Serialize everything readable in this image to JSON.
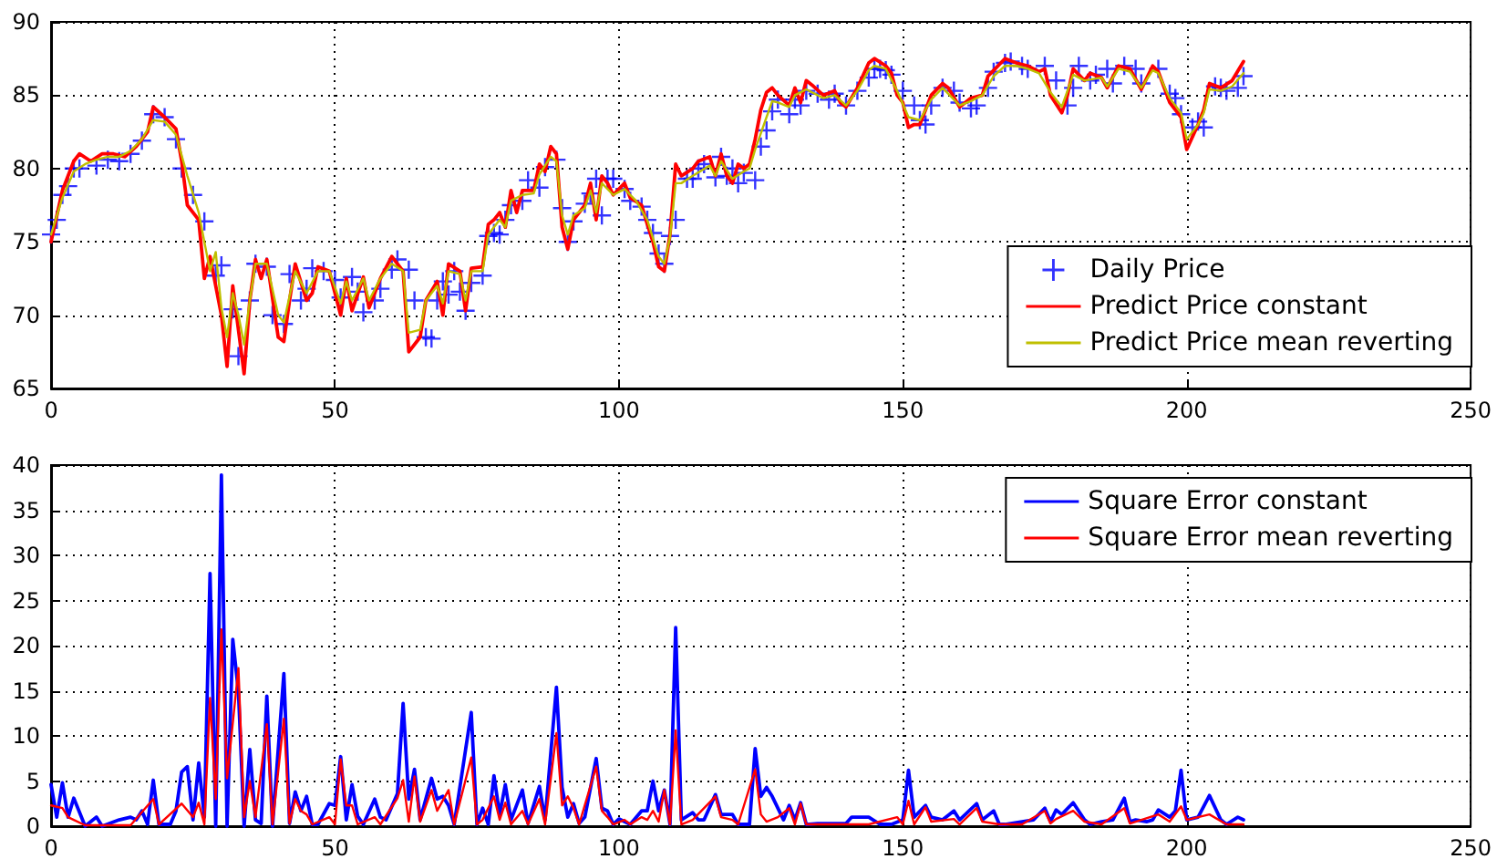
{
  "chart_data": [
    {
      "type": "line",
      "xlim": [
        0,
        250
      ],
      "xticks": [
        0,
        50,
        100,
        150,
        200,
        250
      ],
      "ylim": [
        65,
        90
      ],
      "yticks": [
        65,
        70,
        75,
        80,
        85,
        90
      ],
      "grid": true,
      "legend": "bottom right",
      "series": [
        {
          "name": "Daily Price",
          "type": "scatter",
          "marker": "cross",
          "color": "#0000ff",
          "x": [
            0,
            1,
            2,
            3,
            4,
            5,
            8,
            10,
            12,
            14,
            16,
            18,
            20,
            22,
            23,
            25,
            27,
            29,
            30,
            32,
            33,
            35,
            36,
            38,
            39,
            41,
            42,
            44,
            45,
            46,
            48,
            50,
            51,
            53,
            54,
            55,
            57,
            58,
            60,
            61,
            63,
            64,
            66,
            67,
            68,
            69,
            70,
            71,
            72,
            73,
            74,
            76,
            77,
            78,
            79,
            80,
            81,
            83,
            84,
            86,
            87,
            89,
            90,
            91,
            92,
            94,
            95,
            96,
            97,
            98,
            99,
            101,
            102,
            104,
            105,
            106,
            107,
            108,
            109,
            110,
            112,
            113,
            114,
            115,
            117,
            118,
            119,
            120,
            121,
            122,
            124,
            125,
            126,
            127,
            128,
            130,
            131,
            132,
            133,
            135,
            137,
            138,
            140,
            142,
            144,
            145,
            146,
            147,
            148,
            150,
            152,
            153,
            154,
            155,
            157,
            159,
            160,
            162,
            163,
            165,
            166,
            168,
            169,
            171,
            172,
            175,
            177,
            179,
            180,
            181,
            183,
            184,
            186,
            187,
            189,
            191,
            192,
            195,
            197,
            198,
            199,
            201,
            202,
            203,
            205,
            206,
            207,
            209,
            210
          ],
          "values": [
            75.5,
            76.5,
            78.2,
            78.8,
            80,
            80,
            80.2,
            80.6,
            80.5,
            81,
            81.9,
            83.7,
            83.5,
            82,
            80,
            78.2,
            76.4,
            72.7,
            73.4,
            70.4,
            67.2,
            71,
            73.5,
            73.3,
            70,
            69.4,
            72.8,
            71,
            71.8,
            73.2,
            73,
            72.4,
            71.2,
            72.6,
            71.6,
            70.2,
            71,
            71.8,
            73.1,
            73.8,
            73.1,
            71,
            68.5,
            68.4,
            71,
            72.3,
            71.4,
            73,
            71.6,
            70.3,
            72.2,
            72.7,
            75.4,
            75.6,
            75.5,
            76.5,
            77.5,
            77.8,
            79.2,
            78.7,
            80.1,
            80.6,
            77.3,
            75,
            76.4,
            77.6,
            78.3,
            79.3,
            76.8,
            79.3,
            79.3,
            78.6,
            77.8,
            77.4,
            76.5,
            75.6,
            74.2,
            73.5,
            75.4,
            76.5,
            79.3,
            79.3,
            80,
            80.3,
            79.4,
            80.8,
            79.5,
            80,
            79,
            79.7,
            79.2,
            81.5,
            82.6,
            83.9,
            84.7,
            83.7,
            84.7,
            84.3,
            85.3,
            85.1,
            84.7,
            85.1,
            84.3,
            85.3,
            86.2,
            86.8,
            86.8,
            86.7,
            86.4,
            85.3,
            84.3,
            83.3,
            83,
            84.3,
            85.5,
            85.3,
            84.5,
            84.1,
            84.3,
            85.5,
            86.6,
            87.2,
            87.3,
            87,
            86.8,
            87,
            86,
            84.3,
            85.5,
            87,
            86,
            86.4,
            86.8,
            85.8,
            87,
            86.8,
            85.8,
            86.8,
            85.1,
            84.8,
            83.7,
            82.8,
            83.2,
            82.8,
            85.6,
            85.5,
            85.3,
            85.5,
            86.3
          ]
        },
        {
          "name": "Predict Price constant",
          "type": "line",
          "color": "#ff0000",
          "x": [
            0,
            2,
            4,
            5,
            7,
            9,
            11,
            13,
            15,
            17,
            18,
            20,
            22,
            23,
            24,
            26,
            27,
            28,
            30,
            31,
            32,
            33,
            34,
            35,
            36,
            37,
            38,
            40,
            41,
            42,
            43,
            45,
            46,
            47,
            49,
            51,
            52,
            53,
            55,
            56,
            58,
            60,
            62,
            63,
            65,
            66,
            68,
            69,
            70,
            72,
            73,
            74,
            76,
            77,
            78,
            79,
            80,
            81,
            82,
            83,
            85,
            86,
            87,
            88,
            89,
            90,
            91,
            92,
            94,
            95,
            96,
            97,
            98,
            99,
            101,
            102,
            104,
            105,
            106,
            107,
            108,
            109,
            110,
            111,
            113,
            114,
            116,
            117,
            118,
            119,
            120,
            121,
            122,
            123,
            124,
            125,
            126,
            127,
            128,
            130,
            131,
            132,
            133,
            134,
            136,
            138,
            139,
            140,
            142,
            144,
            145,
            147,
            148,
            149,
            150,
            151,
            152,
            153,
            155,
            157,
            158,
            160,
            161,
            162,
            164,
            165,
            166,
            168,
            170,
            172,
            174,
            175,
            176,
            178,
            179,
            180,
            182,
            183,
            185,
            186,
            188,
            190,
            192,
            194,
            195,
            197,
            199,
            200,
            202,
            203,
            204,
            206,
            208,
            210
          ],
          "values": [
            75,
            78.5,
            80.5,
            81,
            80.5,
            81,
            81,
            80.8,
            81.5,
            82.5,
            84.2,
            83.5,
            82.7,
            80.5,
            77.5,
            76.5,
            72.5,
            74,
            70,
            66.5,
            72,
            69,
            66,
            71,
            73.8,
            72.5,
            73.8,
            68.5,
            68.2,
            71,
            73.5,
            71,
            71.5,
            73.3,
            73,
            70,
            72.5,
            70.3,
            72.6,
            70.5,
            72.5,
            74,
            73,
            67.5,
            68.5,
            71,
            72.3,
            70,
            73.5,
            73,
            70.3,
            73.2,
            73.3,
            76.2,
            76.5,
            77,
            76,
            78.5,
            77,
            78.5,
            78.5,
            80.3,
            79.8,
            81.5,
            81,
            76,
            74.5,
            76.5,
            77.5,
            79,
            76.5,
            79.5,
            79,
            78.2,
            79,
            78,
            77.5,
            76.2,
            75,
            73.3,
            73,
            75.5,
            80.3,
            79.5,
            80,
            80.5,
            80.8,
            79.5,
            81,
            79.5,
            79,
            80.3,
            80,
            80.3,
            82,
            84,
            85.2,
            85.5,
            85,
            84.3,
            85.5,
            84.5,
            86,
            85.7,
            85,
            85.3,
            84.5,
            84.2,
            85.5,
            87.2,
            87.5,
            87,
            86.5,
            85,
            84.5,
            82.8,
            83,
            83,
            85,
            85.8,
            85.5,
            84.2,
            84.5,
            84.8,
            85,
            86.3,
            86.7,
            87.5,
            87.2,
            87,
            86.6,
            86.8,
            85,
            83.8,
            85,
            86.8,
            86,
            86.5,
            86.2,
            85.5,
            87,
            86.8,
            85.4,
            87,
            86.6,
            84.5,
            83.5,
            81.3,
            83,
            84,
            85.8,
            85.5,
            86,
            87.3
          ]
        },
        {
          "name": "Predict Price mean reverting",
          "type": "line",
          "color": "#bfbf00",
          "x": [
            0,
            2,
            4,
            6,
            8,
            10,
            12,
            14,
            16,
            18,
            20,
            22,
            24,
            26,
            27,
            28,
            29,
            30,
            31,
            32,
            33,
            34,
            35,
            36,
            38,
            40,
            41,
            42,
            43,
            45,
            47,
            49,
            51,
            52,
            53,
            55,
            56,
            58,
            60,
            62,
            63,
            65,
            66,
            68,
            69,
            70,
            72,
            73,
            74,
            76,
            77,
            79,
            80,
            81,
            83,
            85,
            86,
            88,
            89,
            90,
            91,
            92,
            94,
            95,
            96,
            97,
            99,
            101,
            103,
            105,
            107,
            108,
            109,
            110,
            111,
            113,
            116,
            117,
            118,
            120,
            122,
            123,
            124,
            126,
            127,
            128,
            130,
            131,
            133,
            136,
            138,
            140,
            142,
            144,
            145,
            147,
            149,
            151,
            153,
            155,
            157,
            160,
            162,
            164,
            166,
            168,
            170,
            172,
            174,
            176,
            178,
            180,
            182,
            185,
            186,
            188,
            190,
            192,
            194,
            195,
            197,
            199,
            200,
            202,
            203,
            204,
            206,
            208,
            210
          ],
          "values": [
            75.5,
            78,
            79.8,
            80.3,
            80.6,
            80.8,
            80.8,
            81.2,
            82,
            83.3,
            83.2,
            82.3,
            79.5,
            77,
            75,
            73,
            74.3,
            70.5,
            68.5,
            71.5,
            70,
            68,
            71,
            73.5,
            73.5,
            70,
            69.5,
            71.3,
            73,
            71.5,
            73,
            73,
            70.8,
            72.3,
            71,
            72.5,
            71,
            72.5,
            73.5,
            73,
            68.8,
            69,
            71,
            72,
            70.8,
            73,
            72.8,
            71,
            73,
            73,
            75.5,
            76.5,
            76,
            77.8,
            78.2,
            78.3,
            79.6,
            80.8,
            80.5,
            76.8,
            75.5,
            76.8,
            77.3,
            78.5,
            77,
            79,
            78.2,
            78.6,
            77.8,
            76.5,
            74,
            73.5,
            75.3,
            79,
            79,
            79.5,
            80.2,
            79.5,
            80.5,
            79.3,
            79.8,
            80,
            81.3,
            83.5,
            84.6,
            84.5,
            84.2,
            85,
            85.4,
            84.8,
            85,
            84.3,
            85.3,
            86.7,
            87,
            86.8,
            85.3,
            83.5,
            83.3,
            84.7,
            85.5,
            84.3,
            84.6,
            85,
            86.3,
            87,
            87,
            86.8,
            86.5,
            85.2,
            84.2,
            86.4,
            86,
            86.2,
            85.6,
            86.8,
            86.6,
            85.5,
            86.7,
            86.5,
            84.8,
            83.8,
            82,
            83,
            83.8,
            85.4,
            85.3,
            85.6,
            86.5
          ]
        }
      ]
    },
    {
      "type": "line",
      "xlim": [
        0,
        250
      ],
      "xticks": [
        0,
        50,
        100,
        150,
        200,
        250
      ],
      "ylim": [
        0,
        40
      ],
      "yticks": [
        0,
        5,
        10,
        15,
        20,
        25,
        30,
        35,
        40
      ],
      "grid": true,
      "legend": "top right",
      "series": [
        {
          "name": "Square Error constant",
          "color": "#0000ff",
          "x": [
            0,
            1,
            2,
            3,
            4,
            6,
            8,
            9,
            12,
            14,
            15,
            16,
            17,
            18,
            19,
            21,
            22,
            23,
            24,
            25,
            26,
            27,
            28,
            29,
            30,
            31,
            32,
            33,
            34,
            35,
            36,
            37,
            38,
            39,
            41,
            42,
            43,
            44,
            45,
            46,
            47,
            49,
            50,
            51,
            52,
            53,
            54,
            55,
            57,
            58,
            59,
            61,
            62,
            63,
            64,
            65,
            67,
            68,
            69,
            70,
            71,
            74,
            75,
            76,
            77,
            78,
            79,
            80,
            81,
            83,
            84,
            86,
            87,
            89,
            90,
            91,
            92,
            93,
            94,
            96,
            97,
            98,
            99,
            100,
            102,
            104,
            105,
            106,
            107,
            108,
            109,
            110,
            111,
            113,
            114,
            115,
            117,
            118,
            120,
            121,
            123,
            124,
            125,
            126,
            127,
            129,
            130,
            131,
            132,
            133,
            135,
            138,
            140,
            141,
            144,
            146,
            148,
            150,
            151,
            152,
            154,
            155,
            157,
            159,
            160,
            163,
            164,
            166,
            167,
            168,
            171,
            173,
            175,
            176,
            177,
            178,
            180,
            182,
            183,
            185,
            187,
            189,
            190,
            191,
            193,
            194,
            195,
            197,
            198,
            199,
            200,
            202,
            204,
            206,
            207,
            209,
            210
          ],
          "values": [
            4.6,
            1,
            4.8,
            1,
            3.1,
            0,
            1,
            0,
            0.7,
            1,
            0.7,
            1.7,
            0.2,
            5.1,
            0.2,
            0.2,
            1.7,
            6,
            6.6,
            0.7,
            7,
            1,
            28,
            0,
            38.9,
            0,
            20.7,
            14.9,
            0,
            8.5,
            0.7,
            0.3,
            14.4,
            0,
            16.9,
            0.3,
            3.8,
            1.7,
            3.3,
            0.2,
            0.2,
            2.5,
            2.3,
            7.7,
            0.7,
            4.6,
            1.1,
            0.2,
            3,
            1,
            0.7,
            3.6,
            13.6,
            3,
            6.3,
            0.7,
            5.3,
            3,
            3.3,
            2.3,
            0.2,
            12.6,
            0.2,
            2,
            0.2,
            5.6,
            1.3,
            4.6,
            0.7,
            4,
            0.3,
            4.4,
            0.7,
            15.4,
            4.3,
            1,
            2.5,
            0.3,
            1,
            7.5,
            2,
            1.7,
            0.2,
            0.8,
            0.2,
            1.7,
            1.7,
            5,
            1.7,
            4,
            0.2,
            22,
            0.7,
            1.5,
            0.7,
            0.7,
            3.5,
            1.3,
            1.3,
            0.2,
            0.2,
            8.6,
            3.3,
            4.3,
            3.3,
            0.7,
            2.3,
            0.7,
            2.6,
            0.2,
            0.3,
            0.3,
            0.3,
            1,
            1,
            0.2,
            0.2,
            0.7,
            6.2,
            1,
            2.3,
            1,
            0.7,
            1.7,
            0.7,
            2.5,
            0.7,
            1.7,
            0.2,
            0.2,
            0.5,
            0.7,
            2,
            0.5,
            1.8,
            1.3,
            2.6,
            0.7,
            0.2,
            0.5,
            0.7,
            3.1,
            0.5,
            0.7,
            0.5,
            0.7,
            1.8,
            1,
            1.7,
            6.2,
            0.7,
            1,
            3.4,
            0.7,
            0.2,
            1,
            0.7
          ]
        },
        {
          "name": "Square Error mean reverting",
          "color": "#ff0000",
          "x": [
            0,
            2,
            3,
            4,
            6,
            10,
            14,
            18,
            19,
            23,
            25,
            26,
            27,
            28,
            29,
            30,
            31,
            33,
            34,
            35,
            36,
            38,
            39,
            41,
            42,
            43,
            44,
            45,
            46,
            49,
            50,
            51,
            52,
            53,
            54,
            57,
            58,
            61,
            62,
            63,
            64,
            65,
            67,
            68,
            70,
            71,
            74,
            75,
            76,
            78,
            79,
            80,
            81,
            83,
            84,
            86,
            87,
            89,
            90,
            91,
            92,
            93,
            96,
            97,
            98,
            99,
            101,
            102,
            104,
            105,
            106,
            107,
            108,
            109,
            110,
            111,
            113,
            117,
            118,
            120,
            121,
            124,
            125,
            126,
            128,
            130,
            131,
            132,
            133,
            139,
            144,
            149,
            150,
            151,
            152,
            154,
            155,
            159,
            160,
            163,
            164,
            167,
            171,
            175,
            176,
            177,
            180,
            182,
            185,
            189,
            190,
            195,
            197,
            199,
            200,
            202,
            204,
            207,
            210
          ],
          "values": [
            2.3,
            2,
            1,
            0.7,
            0.1,
            0.1,
            0.1,
            3,
            0.2,
            2.5,
            1,
            2.6,
            0.2,
            14.2,
            3,
            21.8,
            5.3,
            17.5,
            1,
            5,
            1,
            11.3,
            0.2,
            11.9,
            0.3,
            3,
            1.7,
            1.3,
            0.2,
            1,
            0.2,
            7.4,
            2.3,
            2.3,
            0.2,
            1,
            0.2,
            3.1,
            5.1,
            0.5,
            5.5,
            0.5,
            4,
            1.7,
            4,
            0.2,
            7.6,
            0.2,
            0.7,
            3.3,
            0.7,
            2.6,
            0.2,
            1.7,
            0.2,
            3,
            0.2,
            10.3,
            2.3,
            3.3,
            2,
            0.2,
            6.6,
            1.7,
            1,
            0.2,
            0.7,
            0.2,
            1,
            0.7,
            1.7,
            0.5,
            4,
            0.2,
            10.6,
            0.2,
            0.7,
            3.3,
            1,
            0.7,
            0.2,
            6.3,
            1.3,
            0.5,
            1,
            2,
            0.2,
            2.5,
            0.2,
            0.2,
            0.2,
            1,
            0.2,
            2.8,
            0.2,
            2.1,
            0.5,
            0.8,
            0.2,
            2,
            0.5,
            0.2,
            0.2,
            1.7,
            0.3,
            0.8,
            1.7,
            0.5,
            0.2,
            2,
            0.3,
            1.3,
            0.5,
            2.2,
            0.7,
            1,
            1.3,
            0.2,
            0.2
          ]
        }
      ]
    }
  ]
}
